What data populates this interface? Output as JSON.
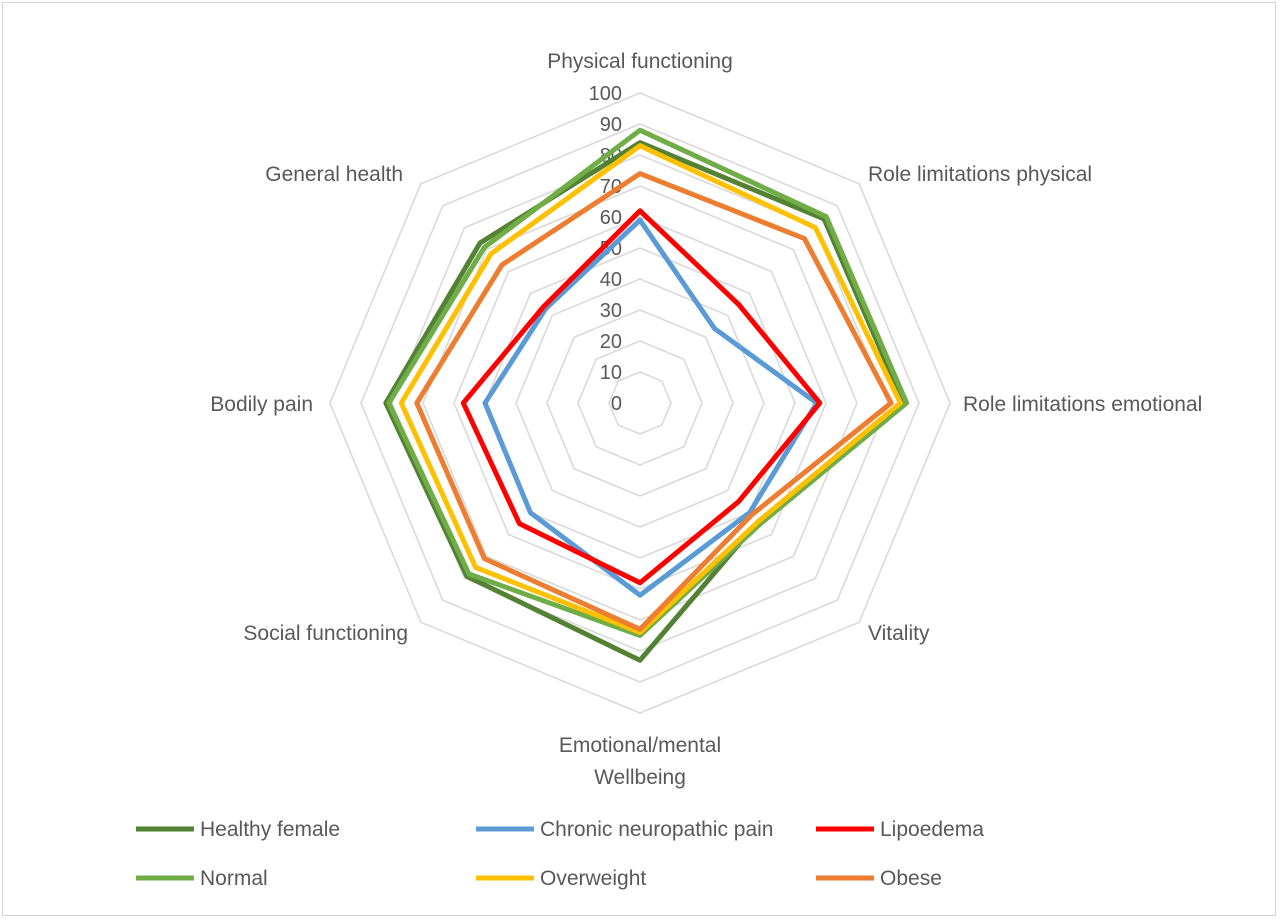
{
  "chart_data": {
    "type": "radar",
    "axes": [
      "Physical functioning",
      "Role limitations physical",
      "Role limitations emotional",
      "Vitality",
      "Emotional/mental Wellbeing",
      "Social functioning",
      "Bodily pain",
      "General health"
    ],
    "axis_label_lines": [
      [
        "Physical functioning"
      ],
      [
        "Role limitations physical"
      ],
      [
        "Role limitations emotional"
      ],
      [
        "Vitality"
      ],
      [
        "Emotional/mental",
        "Wellbeing"
      ],
      [
        "Social functioning"
      ],
      [
        "Bodily pain"
      ],
      [
        "General health"
      ]
    ],
    "r_ticks": [
      "0",
      "10",
      "20",
      "30",
      "40",
      "50",
      "60",
      "70",
      "80",
      "90",
      "100"
    ],
    "rlim": [
      0,
      100
    ],
    "grid": true,
    "legend_position": "bottom",
    "series": [
      {
        "name": "Healthy female",
        "color": "#548235",
        "values": [
          84,
          84,
          85,
          54,
          83,
          79,
          82,
          73
        ]
      },
      {
        "name": "Chronic neuropathic pain",
        "color": "#5b9bd5",
        "values": [
          59,
          34,
          57,
          50,
          62,
          50,
          50,
          43
        ]
      },
      {
        "name": "Lipoedema",
        "color": "#ff0000",
        "values": [
          62,
          45,
          58,
          45,
          58,
          55,
          57,
          44
        ]
      },
      {
        "name": "Normal",
        "color": "#70ad47",
        "values": [
          88,
          85,
          86,
          55,
          75,
          78,
          81,
          71
        ]
      },
      {
        "name": "Overweight",
        "color": "#ffc000",
        "values": [
          83,
          80,
          84,
          54,
          74,
          75,
          77,
          68
        ]
      },
      {
        "name": "Obese",
        "color": "#ed7d31",
        "values": [
          74,
          75,
          81,
          51,
          73,
          71,
          72,
          63
        ]
      }
    ]
  }
}
